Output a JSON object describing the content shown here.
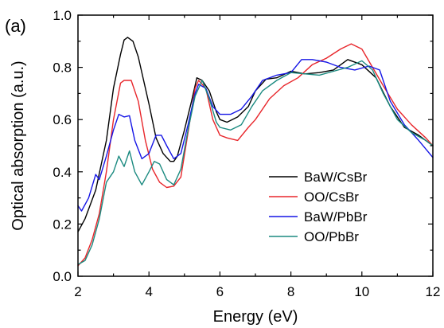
{
  "chart_data": {
    "type": "line",
    "panel_label": "(a)",
    "xlabel": "Energy (eV)",
    "ylabel": "Optical absorption (a.u.)",
    "xlim": [
      2,
      12
    ],
    "ylim": [
      0.0,
      1.0
    ],
    "xticks": [
      2,
      4,
      6,
      8,
      10,
      12
    ],
    "yticks": [
      0.0,
      0.2,
      0.4,
      0.6,
      0.8,
      1.0
    ],
    "xtick_labels": [
      "2",
      "4",
      "6",
      "8",
      "10",
      "12"
    ],
    "ytick_labels": [
      "0.0",
      "0.2",
      "0.4",
      "0.6",
      "0.8",
      "1.0"
    ],
    "grid": false,
    "legend_position": "center-right",
    "series": [
      {
        "name": "BaW/CsBr",
        "color": "#000000",
        "x": [
          2.0,
          2.2,
          2.5,
          2.8,
          3.0,
          3.2,
          3.3,
          3.4,
          3.55,
          3.7,
          3.85,
          4.0,
          4.2,
          4.4,
          4.6,
          4.7,
          4.8,
          5.0,
          5.2,
          5.35,
          5.5,
          5.7,
          5.9,
          6.0,
          6.2,
          6.5,
          6.8,
          7.0,
          7.3,
          7.6,
          8.0,
          8.4,
          8.8,
          9.2,
          9.6,
          10.0,
          10.4,
          10.8,
          11.2,
          11.6,
          12.0
        ],
        "y": [
          0.17,
          0.22,
          0.33,
          0.52,
          0.72,
          0.85,
          0.905,
          0.915,
          0.9,
          0.84,
          0.75,
          0.66,
          0.53,
          0.47,
          0.44,
          0.44,
          0.46,
          0.56,
          0.67,
          0.76,
          0.75,
          0.71,
          0.63,
          0.6,
          0.59,
          0.61,
          0.65,
          0.71,
          0.755,
          0.76,
          0.785,
          0.775,
          0.78,
          0.79,
          0.83,
          0.81,
          0.76,
          0.65,
          0.57,
          0.54,
          0.5
        ]
      },
      {
        "name": "OO/CsBr",
        "color": "#e8262b",
        "x": [
          2.0,
          2.2,
          2.4,
          2.6,
          2.8,
          3.0,
          3.2,
          3.3,
          3.5,
          3.7,
          3.9,
          4.1,
          4.3,
          4.5,
          4.7,
          4.9,
          5.1,
          5.3,
          5.4,
          5.6,
          5.8,
          6.0,
          6.2,
          6.5,
          6.8,
          7.0,
          7.4,
          7.8,
          8.2,
          8.6,
          9.0,
          9.4,
          9.7,
          10.0,
          10.3,
          10.6,
          11.0,
          11.4,
          11.8,
          12.0
        ],
        "y": [
          0.04,
          0.07,
          0.14,
          0.24,
          0.4,
          0.6,
          0.74,
          0.75,
          0.75,
          0.67,
          0.52,
          0.41,
          0.36,
          0.34,
          0.345,
          0.38,
          0.55,
          0.72,
          0.75,
          0.72,
          0.6,
          0.54,
          0.53,
          0.52,
          0.57,
          0.6,
          0.68,
          0.73,
          0.76,
          0.81,
          0.835,
          0.87,
          0.89,
          0.87,
          0.8,
          0.73,
          0.64,
          0.58,
          0.53,
          0.5
        ]
      },
      {
        "name": "BaW/PbBr",
        "color": "#1515e6",
        "x": [
          2.0,
          2.1,
          2.3,
          2.5,
          2.6,
          2.8,
          3.0,
          3.15,
          3.3,
          3.45,
          3.6,
          3.8,
          4.0,
          4.2,
          4.35,
          4.5,
          4.7,
          4.9,
          5.1,
          5.3,
          5.4,
          5.6,
          5.8,
          6.0,
          6.3,
          6.6,
          6.9,
          7.2,
          7.6,
          8.0,
          8.3,
          8.6,
          9.0,
          9.4,
          9.8,
          10.2,
          10.5,
          10.8,
          11.2,
          11.6,
          12.0
        ],
        "y": [
          0.27,
          0.25,
          0.3,
          0.39,
          0.37,
          0.46,
          0.56,
          0.62,
          0.61,
          0.615,
          0.52,
          0.45,
          0.47,
          0.54,
          0.54,
          0.5,
          0.45,
          0.47,
          0.58,
          0.7,
          0.735,
          0.72,
          0.65,
          0.62,
          0.62,
          0.64,
          0.69,
          0.75,
          0.77,
          0.78,
          0.83,
          0.83,
          0.82,
          0.8,
          0.79,
          0.805,
          0.79,
          0.67,
          0.58,
          0.52,
          0.455
        ]
      },
      {
        "name": "OO/PbBr",
        "color": "#1b8a80",
        "x": [
          2.0,
          2.2,
          2.4,
          2.6,
          2.8,
          3.0,
          3.15,
          3.3,
          3.45,
          3.6,
          3.8,
          4.0,
          4.15,
          4.3,
          4.5,
          4.7,
          4.9,
          5.1,
          5.3,
          5.5,
          5.7,
          5.9,
          6.0,
          6.3,
          6.6,
          6.9,
          7.2,
          7.6,
          8.0,
          8.4,
          8.8,
          9.2,
          9.6,
          10.0,
          10.3,
          10.6,
          11.0,
          11.4,
          11.8,
          12.0
        ],
        "y": [
          0.045,
          0.06,
          0.12,
          0.22,
          0.36,
          0.4,
          0.46,
          0.42,
          0.48,
          0.4,
          0.35,
          0.4,
          0.44,
          0.43,
          0.37,
          0.35,
          0.41,
          0.56,
          0.69,
          0.75,
          0.68,
          0.59,
          0.57,
          0.56,
          0.58,
          0.65,
          0.71,
          0.75,
          0.78,
          0.775,
          0.77,
          0.785,
          0.8,
          0.825,
          0.79,
          0.7,
          0.6,
          0.55,
          0.52,
          0.5
        ]
      }
    ]
  }
}
